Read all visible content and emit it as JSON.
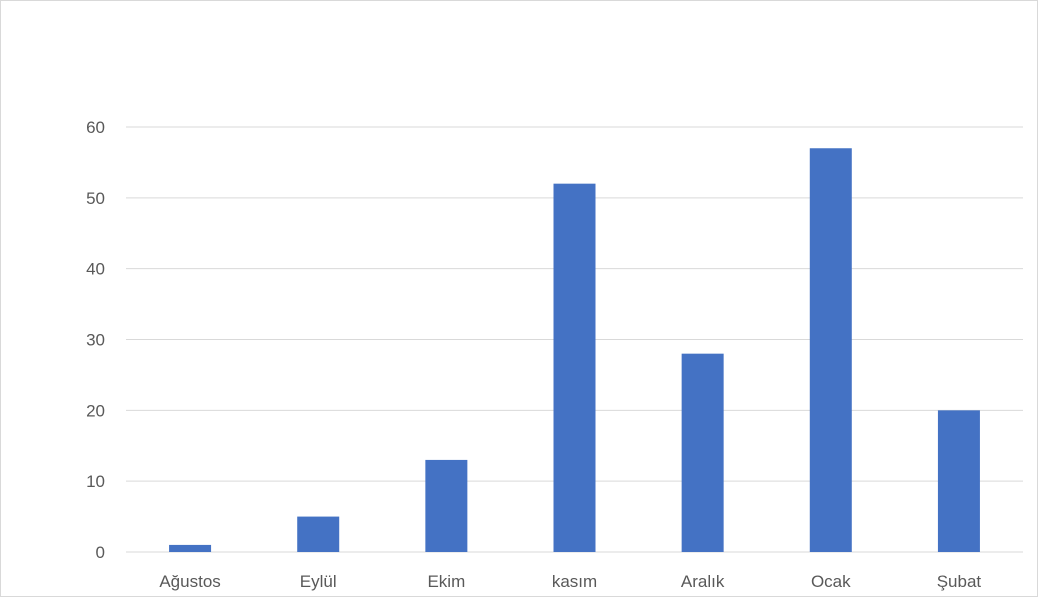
{
  "chart_data": {
    "type": "bar",
    "categories": [
      "Ağustos",
      "Eylül",
      "Ekim",
      "kasım",
      "Aralık",
      "Ocak",
      "Şubat"
    ],
    "values": [
      1,
      5,
      13,
      52,
      28,
      57,
      20
    ],
    "title": "",
    "xlabel": "",
    "ylabel": "",
    "ylim": [
      0,
      60
    ],
    "yticks": [
      "0",
      "10",
      "20",
      "30",
      "40",
      "50",
      "60"
    ],
    "grid": true,
    "bar_color": "#4472c4",
    "legend": "none"
  }
}
